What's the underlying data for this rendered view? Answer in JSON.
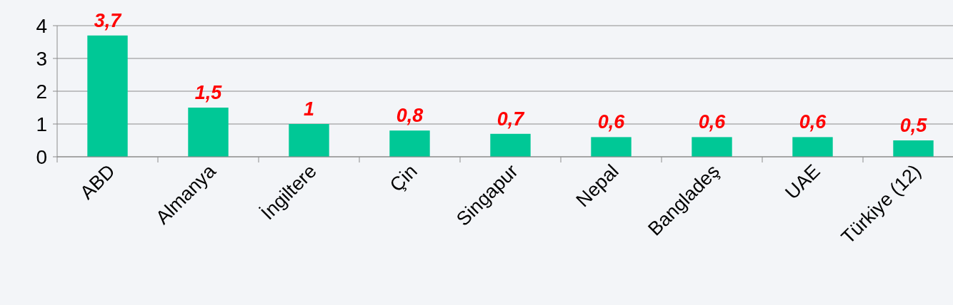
{
  "chart_data": {
    "type": "bar",
    "categories": [
      "ABD",
      "Almanya",
      "İngiltere",
      "Çin",
      "Singapur",
      "Nepal",
      "Bangladeş",
      "UAE",
      "Türkiye (12)"
    ],
    "values": [
      3.7,
      1.5,
      1,
      0.8,
      0.7,
      0.6,
      0.6,
      0.6,
      0.5
    ],
    "value_labels": [
      "3,7",
      "1,5",
      "1",
      "0,8",
      "0,7",
      "0,6",
      "0,6",
      "0,6",
      "0,5"
    ],
    "color": "#00c896",
    "ylim": [
      0,
      4
    ],
    "yticks": [
      0,
      1,
      2,
      3,
      4
    ],
    "grid": "y"
  }
}
